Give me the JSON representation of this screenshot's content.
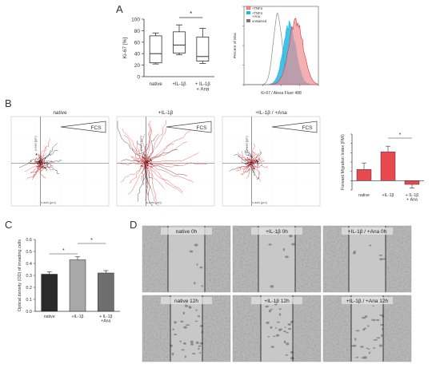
{
  "panels": {
    "A": "A",
    "B": "B",
    "C": "C",
    "D": "D"
  },
  "colors": {
    "red": "#e4353b",
    "pink": "#ee8f92",
    "cyan": "#1fb7e6",
    "gray_bar": "#a8a8a8",
    "dark_bar": "#2a2a2a"
  },
  "panelA_box": {
    "ylabel": "Ki-67 [%]",
    "yticks": [
      "0",
      "20",
      "40",
      "60",
      "80",
      "100"
    ],
    "categories": [
      "native",
      "+IL-1β",
      "+ IL-1β\n+ Ana"
    ],
    "sig": "*"
  },
  "panelA_hist": {
    "ylabel": "Percent of Max",
    "xlabel": "Ki-67 / Alexa Fluor 488",
    "legend": [
      "+TNFα",
      "+TNFα\n+Ana",
      "unstained"
    ]
  },
  "panelB": {
    "plots": [
      {
        "title": "native",
        "fcs": "FCS"
      },
      {
        "title": "+IL-1β",
        "fcs": "FCS"
      },
      {
        "title": "+IL-1β / +Ana",
        "fcs": "FCS"
      }
    ],
    "xaxis": "x-axis [µm]",
    "yaxis": "y-axis [µm]",
    "fmi": {
      "ylabel": "Forward Migration Index (FMI)",
      "categories": [
        "native",
        "+IL-1β",
        "+ IL-1β\n+ Ana"
      ],
      "sig": "*"
    }
  },
  "chart_data": [
    {
      "type": "box",
      "categories": [
        "native",
        "+IL-1β",
        "+ IL-1β + Ana"
      ],
      "ylabel": "Ki-67 [%]",
      "ylim": [
        0,
        100
      ],
      "boxes": [
        {
          "min": 22,
          "q1": 24,
          "median": 40,
          "q3": 71,
          "max": 76
        },
        {
          "min": 38,
          "q1": 41,
          "median": 55,
          "q3": 78,
          "max": 90
        },
        {
          "min": 23,
          "q1": 27,
          "median": 35,
          "q3": 69,
          "max": 84
        }
      ]
    },
    {
      "type": "bar",
      "categories": [
        "native",
        "+IL-1β",
        "+ IL-1β + Ana"
      ],
      "ylabel": "Forward Migration Index (FMI)",
      "ylim": [
        -0.05,
        0.25
      ],
      "values": [
        0.06,
        0.155,
        -0.02
      ],
      "errors": [
        0.035,
        0.03,
        0.02
      ]
    },
    {
      "type": "bar",
      "categories": [
        "native",
        "+IL-1β",
        "+ IL-1β + Ana"
      ],
      "ylabel": "Optical density (OD) of invading cells",
      "ylim": [
        0,
        0.6
      ],
      "yticks": [
        "0.0",
        "0.1",
        "0.2",
        "0.3",
        "0.4",
        "0.5",
        "0.6"
      ],
      "values": [
        0.31,
        0.43,
        0.32
      ],
      "errors": [
        0.02,
        0.025,
        0.02
      ]
    }
  ],
  "panelC": {
    "ylabel": "Optical density (OD) of invading cells",
    "categories": [
      "native",
      "+IL-1β",
      "+ IL-1β\n+Ana"
    ],
    "sig1": "*",
    "sig2": "*"
  },
  "panelD": {
    "tiles": [
      {
        "label": "native 0h"
      },
      {
        "label": "+IL-1β 0h"
      },
      {
        "label": "+IL-1β / +Ana 0h"
      },
      {
        "label": "native 12h"
      },
      {
        "label": "+IL-1β 12h"
      },
      {
        "label": "+IL-1β / +Ana 12h"
      }
    ]
  }
}
